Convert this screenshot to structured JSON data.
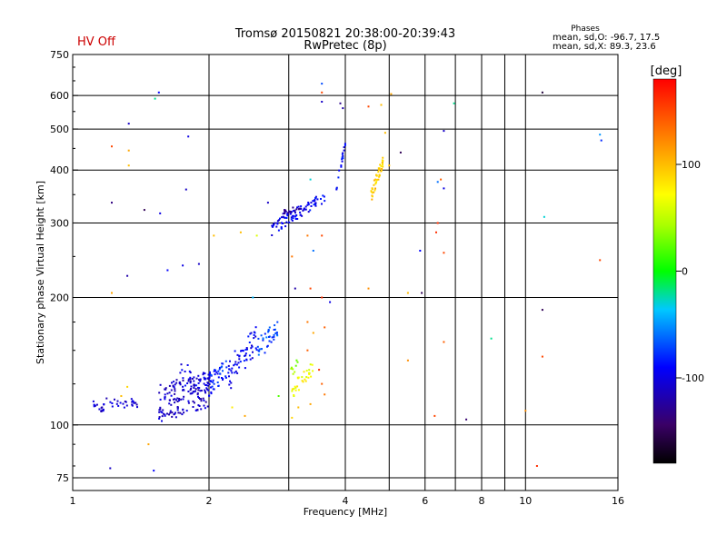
{
  "header": {
    "title_line1": "Tromsø 20150821 20:38:00-20:39:43",
    "title_line2": "RwPretec (8p)",
    "hv_status": "HV Off",
    "phases_title": "Phases",
    "phases_line1": "mean, sd,O: -96.7, 17.5",
    "phases_line2": "mean, sd,X:  89.3, 23.6"
  },
  "colorbar": {
    "label": "[deg]",
    "min": -180,
    "max": 180,
    "ticks": [
      {
        "value": 100,
        "label": "100"
      },
      {
        "value": 0,
        "label": "0"
      },
      {
        "value": -100,
        "label": "-100"
      }
    ]
  },
  "chart_data": {
    "type": "scatter",
    "title": "Tromsø 20150821 20:38:00-20:39:43",
    "subtitle": "RwPretec (8p)",
    "xlabel": "Frequency [MHz]",
    "ylabel": "Stationary phase Virtual Height [km]",
    "xscale": "log",
    "yscale": "log",
    "xlim": [
      1,
      16
    ],
    "ylim": [
      70,
      750
    ],
    "grid": true,
    "color_scale": "phase [deg], range -180 to 180",
    "xticks": [
      {
        "value": 1,
        "label": "1"
      },
      {
        "value": 2,
        "label": "2"
      },
      {
        "value": 4,
        "label": "4"
      },
      {
        "value": 6,
        "label": "6"
      },
      {
        "value": 8,
        "label": "8"
      },
      {
        "value": 10,
        "label": "10"
      },
      {
        "value": 16,
        "label": "16"
      }
    ],
    "xminor_grid": [
      3,
      5,
      7,
      9
    ],
    "yticks": [
      {
        "value": 75,
        "label": "75"
      },
      {
        "value": 100,
        "label": "100"
      },
      {
        "value": 200,
        "label": "200"
      },
      {
        "value": 300,
        "label": "300"
      },
      {
        "value": 400,
        "label": "400"
      },
      {
        "value": 500,
        "label": "500"
      },
      {
        "value": 600,
        "label": "600"
      },
      {
        "value": 750,
        "label": "750"
      }
    ],
    "clusters": [
      {
        "f_from": 1.1,
        "f_to": 1.17,
        "h_from": 113,
        "h_to": 108,
        "spread": 2,
        "phase": -108,
        "count": 14
      },
      {
        "f_from": 1.17,
        "f_to": 1.4,
        "h_from": 113,
        "h_to": 112,
        "spread": 3,
        "phase": -105,
        "count": 26
      },
      {
        "f_from": 1.55,
        "f_to": 2.0,
        "h_from": 113,
        "h_to": 122,
        "spread": 12,
        "phase": -110,
        "count": 160
      },
      {
        "f_from": 1.7,
        "f_to": 2.05,
        "h_from": 133,
        "h_to": 126,
        "spread": 8,
        "phase": -100,
        "count": 30
      },
      {
        "f_from": 2.0,
        "f_to": 2.2,
        "h_from": 125,
        "h_to": 137,
        "spread": 8,
        "phase": -80,
        "count": 40
      },
      {
        "f_from": 2.2,
        "f_to": 2.55,
        "h_from": 130,
        "h_to": 160,
        "spread": 12,
        "phase": -95,
        "count": 60
      },
      {
        "f_from": 2.55,
        "f_to": 2.85,
        "h_from": 150,
        "h_to": 168,
        "spread": 10,
        "phase": -70,
        "count": 40
      },
      {
        "f_from": 3.05,
        "f_to": 3.4,
        "h_from": 120,
        "h_to": 137,
        "spread": 5,
        "phase": 70,
        "count": 30
      },
      {
        "f_from": 3.0,
        "f_to": 3.15,
        "h_from": 132,
        "h_to": 140,
        "spread": 4,
        "phase": 35,
        "count": 8
      },
      {
        "f_from": 2.75,
        "f_to": 3.6,
        "h_from": 290,
        "h_to": 345,
        "spread": 10,
        "phase": -95,
        "count": 90
      },
      {
        "f_from": 2.9,
        "f_to": 3.2,
        "h_from": 318,
        "h_to": 326,
        "spread": 4,
        "phase": -125,
        "count": 20
      },
      {
        "f_from": 3.8,
        "f_to": 4.0,
        "h_from": 350,
        "h_to": 460,
        "spread": 8,
        "phase": -90,
        "count": 18
      },
      {
        "f_from": 4.55,
        "f_to": 4.85,
        "h_from": 345,
        "h_to": 420,
        "spread": 12,
        "phase": 95,
        "count": 45
      }
    ],
    "points": [
      {
        "f": 1.55,
        "h": 610,
        "phase": -90
      },
      {
        "f": 1.52,
        "h": 590,
        "phase": -20
      },
      {
        "f": 1.33,
        "h": 515,
        "phase": -110
      },
      {
        "f": 1.22,
        "h": 455,
        "phase": 150
      },
      {
        "f": 1.33,
        "h": 445,
        "phase": 110
      },
      {
        "f": 1.33,
        "h": 410,
        "phase": 100
      },
      {
        "f": 1.22,
        "h": 335,
        "phase": -135
      },
      {
        "f": 1.44,
        "h": 322,
        "phase": -150
      },
      {
        "f": 1.56,
        "h": 316,
        "phase": -100
      },
      {
        "f": 1.78,
        "h": 360,
        "phase": -110
      },
      {
        "f": 1.8,
        "h": 480,
        "phase": -100
      },
      {
        "f": 1.32,
        "h": 225,
        "phase": -120
      },
      {
        "f": 1.22,
        "h": 205,
        "phase": 110
      },
      {
        "f": 1.62,
        "h": 232,
        "phase": -90
      },
      {
        "f": 1.75,
        "h": 238,
        "phase": -100
      },
      {
        "f": 1.9,
        "h": 240,
        "phase": -110
      },
      {
        "f": 2.05,
        "h": 280,
        "phase": 100
      },
      {
        "f": 2.35,
        "h": 285,
        "phase": 100
      },
      {
        "f": 2.55,
        "h": 280,
        "phase": 60
      },
      {
        "f": 2.7,
        "h": 335,
        "phase": -110
      },
      {
        "f": 3.35,
        "h": 380,
        "phase": -30
      },
      {
        "f": 3.55,
        "h": 610,
        "phase": 150
      },
      {
        "f": 3.55,
        "h": 640,
        "phase": -70
      },
      {
        "f": 3.55,
        "h": 580,
        "phase": -110
      },
      {
        "f": 3.9,
        "h": 575,
        "phase": -130
      },
      {
        "f": 3.95,
        "h": 560,
        "phase": -120
      },
      {
        "f": 4.5,
        "h": 565,
        "phase": 150
      },
      {
        "f": 4.8,
        "h": 570,
        "phase": 100
      },
      {
        "f": 5.05,
        "h": 605,
        "phase": 110
      },
      {
        "f": 4.9,
        "h": 490,
        "phase": 100
      },
      {
        "f": 5.3,
        "h": 440,
        "phase": -150
      },
      {
        "f": 5.0,
        "h": 410,
        "phase": 100
      },
      {
        "f": 6.4,
        "h": 375,
        "phase": -60
      },
      {
        "f": 6.5,
        "h": 380,
        "phase": 140
      },
      {
        "f": 6.6,
        "h": 362,
        "phase": -100
      },
      {
        "f": 6.6,
        "h": 495,
        "phase": -110
      },
      {
        "f": 6.95,
        "h": 575,
        "phase": -20
      },
      {
        "f": 6.4,
        "h": 300,
        "phase": 160
      },
      {
        "f": 6.35,
        "h": 285,
        "phase": 160
      },
      {
        "f": 6.6,
        "h": 255,
        "phase": 150
      },
      {
        "f": 5.85,
        "h": 258,
        "phase": -90
      },
      {
        "f": 5.9,
        "h": 205,
        "phase": -150
      },
      {
        "f": 5.5,
        "h": 205,
        "phase": 100
      },
      {
        "f": 4.5,
        "h": 210,
        "phase": 120
      },
      {
        "f": 3.35,
        "h": 210,
        "phase": 150
      },
      {
        "f": 3.55,
        "h": 200,
        "phase": 160
      },
      {
        "f": 3.7,
        "h": 195,
        "phase": -100
      },
      {
        "f": 3.55,
        "h": 280,
        "phase": 150
      },
      {
        "f": 3.3,
        "h": 280,
        "phase": 130
      },
      {
        "f": 3.4,
        "h": 258,
        "phase": -60
      },
      {
        "f": 3.05,
        "h": 250,
        "phase": 130
      },
      {
        "f": 3.1,
        "h": 210,
        "phase": -120
      },
      {
        "f": 3.3,
        "h": 175,
        "phase": 130
      },
      {
        "f": 3.4,
        "h": 165,
        "phase": 110
      },
      {
        "f": 3.6,
        "h": 170,
        "phase": 140
      },
      {
        "f": 3.3,
        "h": 150,
        "phase": 140
      },
      {
        "f": 3.5,
        "h": 135,
        "phase": 160
      },
      {
        "f": 3.55,
        "h": 125,
        "phase": 140
      },
      {
        "f": 3.6,
        "h": 118,
        "phase": 130
      },
      {
        "f": 3.35,
        "h": 112,
        "phase": 110
      },
      {
        "f": 3.15,
        "h": 110,
        "phase": 100
      },
      {
        "f": 3.05,
        "h": 104,
        "phase": 90
      },
      {
        "f": 2.85,
        "h": 117,
        "phase": 20
      },
      {
        "f": 2.4,
        "h": 105,
        "phase": 110
      },
      {
        "f": 2.25,
        "h": 110,
        "phase": 80
      },
      {
        "f": 1.28,
        "h": 117,
        "phase": 100
      },
      {
        "f": 1.32,
        "h": 123,
        "phase": 90
      },
      {
        "f": 2.5,
        "h": 200,
        "phase": -40
      },
      {
        "f": 6.3,
        "h": 105,
        "phase": 150
      },
      {
        "f": 7.4,
        "h": 103,
        "phase": -140
      },
      {
        "f": 6.6,
        "h": 157,
        "phase": 140
      },
      {
        "f": 5.5,
        "h": 142,
        "phase": 120
      },
      {
        "f": 8.4,
        "h": 160,
        "phase": -20
      },
      {
        "f": 10.0,
        "h": 108,
        "phase": 120
      },
      {
        "f": 10.6,
        "h": 80,
        "phase": 160
      },
      {
        "f": 10.9,
        "h": 145,
        "phase": 150
      },
      {
        "f": 10.9,
        "h": 187,
        "phase": -150
      },
      {
        "f": 11.0,
        "h": 310,
        "phase": -30
      },
      {
        "f": 10.9,
        "h": 610,
        "phase": -160
      },
      {
        "f": 14.6,
        "h": 485,
        "phase": -50
      },
      {
        "f": 14.7,
        "h": 470,
        "phase": -80
      },
      {
        "f": 14.6,
        "h": 245,
        "phase": 150
      },
      {
        "f": 1.47,
        "h": 90,
        "phase": 110
      },
      {
        "f": 1.51,
        "h": 78,
        "phase": -90
      },
      {
        "f": 1.21,
        "h": 79,
        "phase": -110
      }
    ]
  }
}
